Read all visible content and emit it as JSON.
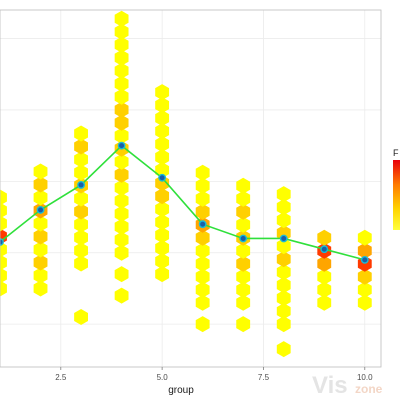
{
  "chart_data": {
    "type": "hexbin",
    "xlabel": "group",
    "ylabel": "",
    "x_ticks": [
      "2.5",
      "5.0",
      "7.5",
      "10.0"
    ],
    "x_tick_values": [
      2.5,
      5.0,
      7.5,
      10.0
    ],
    "xlim": [
      1.0,
      10.4
    ],
    "ylim": [
      -0.2,
      9.8
    ],
    "grid": true,
    "legend": {
      "title": "F",
      "placement": "right",
      "colors": [
        "#e8000b",
        "#ff7a00",
        "#ffd400",
        "#ffff3d"
      ]
    },
    "colors": {
      "line": "#2fe03b",
      "point_fill": "#1a5ea8",
      "point_stroke": "#17bcd6",
      "hex_low": "#ffff00",
      "hex_mid": "#ffa500",
      "hex_high": "#ff0000",
      "panel_border": "#bdbdbd",
      "grid": "#ebebeb"
    },
    "series": [
      {
        "x": [
          1,
          2,
          3,
          4,
          5,
          6,
          7,
          8,
          9,
          10
        ],
        "y": [
          3.3,
          4.2,
          4.9,
          6.0,
          5.1,
          3.8,
          3.4,
          3.4,
          3.1,
          2.8
        ]
      }
    ],
    "hex_columns": [
      {
        "x": 1,
        "y_min": 2.0,
        "y_max": 4.6,
        "hot": [
          {
            "y": 3.3,
            "level": 3
          },
          {
            "y": 3.6,
            "level": 2
          }
        ]
      },
      {
        "x": 2,
        "y_min": 2.0,
        "y_max": 5.6,
        "hot": [
          {
            "y": 4.2,
            "level": 2
          },
          {
            "y": 3.4,
            "level": 1
          },
          {
            "y": 2.8,
            "level": 1
          },
          {
            "y": 4.8,
            "level": 1
          }
        ]
      },
      {
        "x": 3,
        "y_min": 2.7,
        "y_max": 6.6,
        "hot": [
          {
            "y": 4.9,
            "level": 1
          },
          {
            "y": 4.2,
            "level": 1
          },
          {
            "y": 5.9,
            "level": 1
          }
        ],
        "outliers": [
          1.2
        ]
      },
      {
        "x": 4,
        "y_min": 3.0,
        "y_max": 9.8,
        "hot": [
          {
            "y": 6.0,
            "level": 1
          },
          {
            "y": 5.3,
            "level": 1
          },
          {
            "y": 6.6,
            "level": 1
          },
          {
            "y": 7.0,
            "level": 1
          }
        ],
        "outliers": [
          2.4,
          1.8
        ]
      },
      {
        "x": 5,
        "y_min": 2.4,
        "y_max": 7.6,
        "hot": [
          {
            "y": 5.1,
            "level": 1
          },
          {
            "y": 4.6,
            "level": 1
          }
        ]
      },
      {
        "x": 6,
        "y_min": 1.6,
        "y_max": 5.4,
        "hot": [
          {
            "y": 3.8,
            "level": 2
          },
          {
            "y": 3.3,
            "level": 1
          },
          {
            "y": 4.2,
            "level": 1
          }
        ],
        "outliers": [
          1.0
        ]
      },
      {
        "x": 7,
        "y_min": 1.6,
        "y_max": 4.9,
        "hot": [
          {
            "y": 3.4,
            "level": 1
          },
          {
            "y": 2.8,
            "level": 1
          },
          {
            "y": 4.1,
            "level": 1
          }
        ],
        "outliers": [
          1.0
        ]
      },
      {
        "x": 8,
        "y_min": 1.0,
        "y_max": 4.9,
        "hot": [
          {
            "y": 3.4,
            "level": 1
          },
          {
            "y": 2.8,
            "level": 1
          }
        ],
        "outliers": [
          0.3
        ]
      },
      {
        "x": 9,
        "y_min": 1.6,
        "y_max": 3.6,
        "hot": [
          {
            "y": 3.1,
            "level": 3
          },
          {
            "y": 2.6,
            "level": 2
          },
          {
            "y": 3.5,
            "level": 1
          }
        ]
      },
      {
        "x": 10,
        "y_min": 1.6,
        "y_max": 3.6,
        "hot": [
          {
            "y": 2.8,
            "level": 3
          },
          {
            "y": 3.2,
            "level": 2
          },
          {
            "y": 2.4,
            "level": 1
          }
        ]
      }
    ]
  },
  "watermark": {
    "part1": "Vis",
    "part2": "zone"
  }
}
